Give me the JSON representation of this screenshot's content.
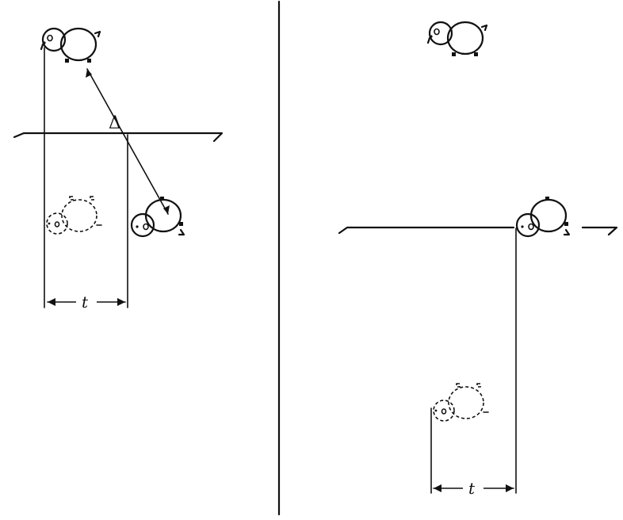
{
  "left_panel": {
    "delta_label": "Δ",
    "t_label": "t"
  },
  "right_panel": {
    "t_label": "t"
  },
  "colors": {
    "ink": "#111111",
    "background": "#ffffff"
  }
}
